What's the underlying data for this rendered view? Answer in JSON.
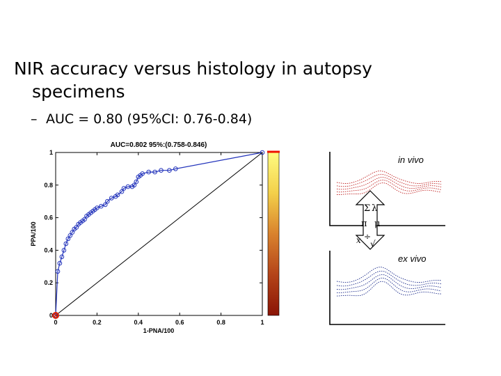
{
  "slide": {
    "title_line1": "NIR accuracy versus histology in autopsy",
    "title_line2": "specimens",
    "bullet_dash": "–",
    "bullet": "AUC = 0.80 (95%CI: 0.76-0.84)"
  },
  "chart_data": {
    "type": "line",
    "title": "AUC=0.802 95%:(0.758-0.846)",
    "xlabel": "1-PNA/100",
    "ylabel": "PPA/100",
    "xlim": [
      0,
      1
    ],
    "ylim": [
      0,
      1
    ],
    "x_ticks": [
      "0",
      "0.2",
      "0.4",
      "0.6",
      "0.8",
      "1"
    ],
    "y_ticks": [
      "0",
      "0.2",
      "0.4",
      "0.6",
      "0.8",
      "1"
    ],
    "grid": false,
    "series": [
      {
        "color": "#2233bb",
        "marker": "circle",
        "x": [
          0.0,
          0.01,
          0.02,
          0.03,
          0.04,
          0.05,
          0.06,
          0.07,
          0.08,
          0.09,
          0.1,
          0.11,
          0.12,
          0.13,
          0.14,
          0.15,
          0.16,
          0.17,
          0.18,
          0.19,
          0.2,
          0.22,
          0.24,
          0.25,
          0.27,
          0.29,
          0.3,
          0.32,
          0.33,
          0.35,
          0.37,
          0.38,
          0.39,
          0.4,
          0.41,
          0.42,
          0.45,
          0.48,
          0.51,
          0.55,
          0.58,
          1.0
        ],
        "y": [
          0.0,
          0.27,
          0.32,
          0.36,
          0.4,
          0.44,
          0.47,
          0.49,
          0.51,
          0.53,
          0.54,
          0.56,
          0.57,
          0.58,
          0.59,
          0.61,
          0.62,
          0.63,
          0.64,
          0.65,
          0.66,
          0.67,
          0.68,
          0.7,
          0.72,
          0.73,
          0.74,
          0.76,
          0.78,
          0.79,
          0.79,
          0.8,
          0.82,
          0.85,
          0.86,
          0.87,
          0.88,
          0.88,
          0.89,
          0.89,
          0.9,
          1.0
        ]
      },
      {
        "color": "#000000",
        "marker": "none",
        "x": [
          0,
          1
        ],
        "y": [
          0,
          1
        ]
      }
    ],
    "operating_point": {
      "x": 0.0,
      "y": 0.0,
      "color": "#dd2200"
    },
    "colorbar": {
      "colors": [
        "#fffb80",
        "#f3d04a",
        "#d9822d",
        "#b44419",
        "#8a1406"
      ],
      "top_color": "#ee1100"
    }
  },
  "panel": {
    "in_vivo_label": "in vivo",
    "ex_vivo_label": "ex vivo",
    "symbols": [
      "Σ",
      "λ",
      "π",
      "μ",
      "x",
      "÷",
      "√"
    ],
    "in_vivo_color": "#c02020",
    "ex_vivo_color": "#1a2a8a"
  }
}
